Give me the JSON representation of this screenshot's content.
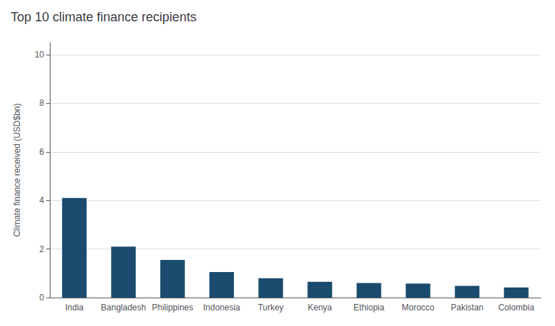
{
  "chart_data": {
    "type": "bar",
    "title": "Top 10 climate finance recipients",
    "categories": [
      "India",
      "Bangladesh",
      "Philippines",
      "Indonesia",
      "Turkey",
      "Kenya",
      "Ethiopia",
      "Morocco",
      "Pakistan",
      "Colombia"
    ],
    "values": [
      4.1,
      2.1,
      1.55,
      1.05,
      0.8,
      0.65,
      0.6,
      0.58,
      0.48,
      0.42
    ],
    "color": "#1a4b6e",
    "ylabel": "Climate finance received (USD$bn)",
    "ylim": [
      0,
      10.5
    ],
    "yticks": [
      0,
      2,
      4,
      6,
      8,
      10
    ],
    "grid": true
  }
}
